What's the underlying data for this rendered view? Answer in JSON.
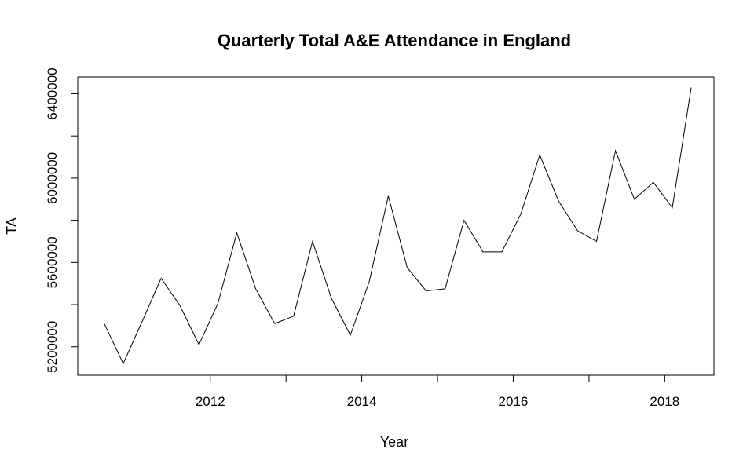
{
  "chart_data": {
    "type": "line",
    "title": "Quarterly Total A&E Attendance in England",
    "xlabel": "Year",
    "ylabel": "TA",
    "xlim": [
      2010.25,
      2018.65
    ],
    "ylim": [
      5065000,
      6480000
    ],
    "x_ticks": [
      2012,
      2014,
      2016,
      2018
    ],
    "y_ticks": [
      5200000,
      5600000,
      6000000,
      6400000
    ],
    "y_tick_labels": [
      "5200000",
      "5600000",
      "6000000",
      "6400000"
    ],
    "x_tick_labels": [
      "2012",
      "2014",
      "2016",
      "2018"
    ],
    "grid": false,
    "series": [
      {
        "x": [
          2010.6,
          2010.85,
          2011.1,
          2011.35,
          2011.6,
          2011.85,
          2012.1,
          2012.35,
          2012.6,
          2012.85,
          2013.1,
          2013.35,
          2013.6,
          2013.85,
          2014.1,
          2014.35,
          2014.6,
          2014.85,
          2015.1,
          2015.35,
          2015.6,
          2015.85,
          2016.1,
          2016.35,
          2016.6,
          2016.85,
          2017.1,
          2017.35,
          2017.6,
          2017.85,
          2018.1,
          2018.35
        ],
        "values": [
          5310000,
          5120000,
          5320000,
          5525000,
          5395000,
          5210000,
          5405000,
          5740000,
          5475000,
          5310000,
          5345000,
          5700000,
          5430000,
          5255000,
          5510000,
          5915000,
          5575000,
          5465000,
          5475000,
          5800000,
          5650000,
          5650000,
          5830000,
          6110000,
          5890000,
          5750000,
          5700000,
          6130000,
          5900000,
          5980000,
          5860000,
          6430000
        ]
      }
    ]
  }
}
